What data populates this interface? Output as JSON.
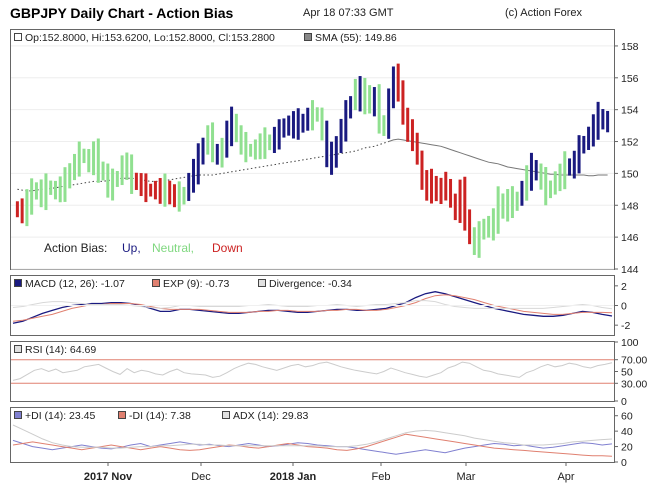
{
  "header": {
    "title": "GBPJPY Daily Chart - Action Bias",
    "date": "Apr 18 07:33 GMT",
    "copyright": "(c) Action Forex"
  },
  "colors": {
    "up": "#1a1a80",
    "neutral": "#90e090",
    "down": "#cc2222",
    "sma": "#777777",
    "macd": "#1a1a80",
    "exp": "#e08070",
    "divergence": "#d8d8d8",
    "rsi": "#cccccc",
    "rsi_levels": "#e08070",
    "pdi": "#8080d0",
    "mdi": "#e08070",
    "adx": "#cccccc"
  },
  "chart_data": [
    {
      "type": "ohlc",
      "legend": {
        "ohlc": "Op:152.8000, Hi:153.6200, Lo:152.8000, Cl:153.2800",
        "sma": "SMA (55): 149.86"
      },
      "bias_legend": {
        "label": "Action Bias:",
        "up": "Up,",
        "neutral": "Neutral,",
        "down": "Down"
      },
      "x_ticks": [
        "2017 Nov",
        "Dec",
        "2018 Jan",
        "Feb",
        "Mar",
        "Apr"
      ],
      "y_ticks": [
        "158",
        "156",
        "154",
        "152",
        "150",
        "148",
        "146",
        "144"
      ],
      "ylim": [
        144,
        159
      ],
      "closes": [
        147.9,
        147.4,
        148.3,
        148.8,
        149.0,
        148.5,
        149.2,
        149.0,
        148.9,
        149.1,
        149.5,
        150.2,
        150.6,
        151.2,
        151.0,
        150.6,
        151.3,
        150.3,
        150.0,
        149.1,
        149.5,
        149.8,
        150.6,
        150.3,
        149.6,
        149.4,
        149.2,
        149.0,
        148.9,
        149.0,
        148.8,
        149.1,
        148.5,
        148.7,
        148.4,
        148.8,
        149.5,
        150.2,
        151.0,
        151.8,
        152.4,
        151.5,
        150.9,
        151.7,
        152.6,
        153.3,
        152.4,
        151.8,
        151.5,
        151.4,
        151.6,
        151.8,
        152.0,
        151.9,
        152.3,
        152.6,
        153.1,
        152.9,
        153.2,
        153.0,
        153.3,
        153.5,
        153.8,
        153.6,
        152.6,
        151.1,
        150.8,
        151.9,
        152.8,
        153.8,
        154.5,
        155.4,
        154.6,
        155.1,
        154.2,
        154.8,
        153.3,
        152.7,
        154.8,
        156.0,
        155.4,
        153.5,
        152.6,
        152.2,
        150.9,
        149.5,
        149.0,
        149.4,
        148.7,
        149.1,
        149.3,
        148.2,
        147.6,
        148.9,
        147.3,
        146.0,
        145.5,
        146.2,
        146.8,
        146.5,
        147.1,
        148.3,
        147.6,
        148.4,
        148.0,
        148.5,
        149.0,
        149.8,
        150.4,
        150.0,
        149.6,
        148.8,
        149.2,
        149.6,
        149.9,
        150.5,
        150.3,
        150.8,
        151.6,
        152.0,
        152.4,
        153.0,
        153.6,
        153.2,
        153.3
      ],
      "bias": "DDNNNNNNNNNNNNNNNNNNNNNNNDDDDDDNDDNNUUUUNNUNUUNNNNNNNNUUUUUUUUNNNUUUUUUNUNNUNNUUDDDDDDDDDDDDDDDDNNNNNNNNNNUNUUNNNNNNUUUUUUUUUUU",
      "sma": [
        149.0,
        148.95,
        148.9,
        148.9,
        148.95,
        149.0,
        149.0,
        149.05,
        149.1,
        149.15,
        149.2,
        149.25,
        149.3,
        149.35,
        149.4,
        149.45,
        149.5,
        149.5,
        149.5,
        149.55,
        149.6,
        149.65,
        149.7,
        149.7,
        149.7,
        149.65,
        149.6,
        149.55,
        149.5,
        149.5,
        149.5,
        149.55,
        149.6,
        149.65,
        149.7,
        149.75,
        149.8,
        149.85,
        149.9,
        149.9,
        149.9,
        149.9,
        149.95,
        150.0,
        150.05,
        150.1,
        150.15,
        150.2,
        150.25,
        150.3,
        150.35,
        150.4,
        150.45,
        150.5,
        150.55,
        150.6,
        150.65,
        150.7,
        150.75,
        150.8,
        150.85,
        150.9,
        150.95,
        151.0,
        151.05,
        151.1,
        151.15,
        151.2,
        151.25,
        151.3,
        151.35,
        151.4,
        151.5,
        151.6,
        151.65,
        151.7,
        151.8,
        151.9,
        152.0,
        152.1,
        152.15,
        152.1,
        152.05,
        152.0,
        151.95,
        151.9,
        151.85,
        151.8,
        151.75,
        151.7,
        151.6,
        151.5,
        151.4,
        151.3,
        151.2,
        151.1,
        151.0,
        150.9,
        150.8,
        150.7,
        150.65,
        150.6,
        150.5,
        150.4,
        150.35,
        150.3,
        150.25,
        150.2,
        150.15,
        150.1,
        150.05,
        150.0,
        149.95,
        149.95,
        149.9,
        149.9,
        149.9,
        149.9,
        149.9,
        149.9,
        149.85,
        149.85,
        149.9,
        149.9,
        149.9
      ]
    },
    {
      "type": "line",
      "legend": {
        "macd": "MACD (12, 26): -1.07",
        "exp": "EXP (9): -0.73",
        "div": "Divergence: -0.34"
      },
      "y_ticks": [
        "2",
        "0",
        "-2"
      ],
      "ylim": [
        -3,
        3
      ],
      "series": [
        {
          "name": "MACD (12, 26): -1.07",
          "values": [
            -1.8,
            -1.6,
            -1.2,
            -0.8,
            -0.5,
            -0.2,
            0.0,
            0.1,
            0.2,
            0.2,
            0.3,
            0.3,
            0.2,
            0.0,
            -0.3,
            -0.6,
            -0.6,
            -0.4,
            -0.4,
            -0.5,
            -0.6,
            -0.7,
            -0.8,
            -0.8,
            -0.7,
            -0.6,
            -0.5,
            -0.5,
            -0.6,
            -0.7,
            -0.7,
            -0.6,
            -0.5,
            -0.4,
            -0.4,
            -0.5,
            -0.5,
            -0.4,
            -0.3,
            0.0,
            0.3,
            0.8,
            1.2,
            1.4,
            1.2,
            0.9,
            0.6,
            0.3,
            0.0,
            -0.3,
            -0.5,
            -0.7,
            -0.9,
            -1.0,
            -1.1,
            -1.1,
            -1.0,
            -0.8,
            -0.6,
            -0.7,
            -0.9,
            -1.07
          ]
        },
        {
          "name": "EXP (9): -0.73",
          "values": [
            -1.6,
            -1.5,
            -1.3,
            -1.1,
            -0.9,
            -0.6,
            -0.3,
            -0.1,
            0.1,
            0.1,
            0.2,
            0.2,
            0.2,
            0.1,
            -0.1,
            -0.3,
            -0.4,
            -0.4,
            -0.4,
            -0.4,
            -0.5,
            -0.6,
            -0.7,
            -0.7,
            -0.7,
            -0.6,
            -0.6,
            -0.5,
            -0.5,
            -0.6,
            -0.6,
            -0.6,
            -0.5,
            -0.5,
            -0.4,
            -0.4,
            -0.5,
            -0.5,
            -0.4,
            -0.2,
            0.0,
            0.3,
            0.7,
            1.0,
            1.1,
            1.0,
            0.8,
            0.6,
            0.3,
            0.0,
            -0.2,
            -0.4,
            -0.6,
            -0.7,
            -0.8,
            -0.9,
            -0.9,
            -0.8,
            -0.7,
            -0.7,
            -0.7,
            -0.73
          ]
        },
        {
          "name": "Divergence: -0.34",
          "values": [
            -0.2,
            -0.1,
            0.1,
            0.3,
            0.4,
            0.4,
            0.3,
            0.2,
            0.1,
            0.1,
            0.1,
            0.1,
            0.0,
            -0.1,
            -0.2,
            -0.3,
            -0.2,
            0.0,
            0.0,
            -0.1,
            -0.1,
            -0.1,
            -0.1,
            -0.1,
            0.0,
            0.0,
            0.1,
            0.0,
            -0.1,
            -0.1,
            -0.1,
            0.0,
            0.0,
            0.1,
            0.0,
            -0.1,
            0.0,
            0.1,
            0.1,
            0.2,
            0.3,
            0.5,
            0.5,
            0.4,
            0.1,
            -0.1,
            -0.2,
            -0.3,
            -0.3,
            -0.3,
            -0.3,
            -0.3,
            -0.3,
            -0.3,
            -0.3,
            -0.2,
            -0.1,
            0.0,
            0.1,
            0.0,
            -0.2,
            -0.34
          ]
        }
      ]
    },
    {
      "type": "line",
      "legend": {
        "rsi": "RSI (14): 64.69"
      },
      "y_ticks": [
        "100",
        "70.00",
        "50",
        "30.00",
        "0"
      ],
      "ylim": [
        0,
        100
      ],
      "levels": [
        70,
        30
      ],
      "series": [
        {
          "name": "RSI (14): 64.69",
          "values": [
            35,
            38,
            45,
            52,
            55,
            50,
            54,
            48,
            50,
            52,
            58,
            60,
            62,
            56,
            50,
            45,
            55,
            48,
            52,
            50,
            46,
            44,
            50,
            54,
            48,
            46,
            45,
            44,
            40,
            42,
            48,
            55,
            60,
            64,
            62,
            58,
            55,
            52,
            56,
            60,
            62,
            58,
            60,
            64,
            66,
            62,
            58,
            55,
            52,
            50,
            48,
            46,
            50,
            56,
            52,
            48,
            45,
            42,
            40,
            44,
            48,
            56,
            60,
            66,
            64,
            58,
            52,
            50,
            46,
            44,
            42,
            40,
            48,
            52,
            58,
            62,
            58,
            60,
            64,
            62,
            58,
            56,
            60,
            62,
            64.69
          ]
        }
      ]
    },
    {
      "type": "line",
      "legend": {
        "pdi": "+DI (14): 23.45",
        "mdi": "-DI (14): 7.38",
        "adx": "ADX (14): 29.83"
      },
      "y_ticks": [
        "60",
        "40",
        "20",
        "0"
      ],
      "ylim": [
        0,
        70
      ],
      "series": [
        {
          "name": "+DI (14): 23.45",
          "values": [
            28,
            24,
            20,
            18,
            16,
            18,
            20,
            22,
            20,
            18,
            17,
            19,
            22,
            24,
            20,
            22,
            24,
            26,
            24,
            22,
            23,
            21,
            20,
            22,
            24,
            22,
            20,
            21,
            23,
            25,
            24,
            22,
            21,
            20,
            20,
            18,
            16,
            14,
            12,
            10,
            12,
            14,
            16,
            14,
            12,
            15,
            18,
            20,
            22,
            24,
            23,
            21,
            22,
            20,
            18,
            19,
            21,
            23,
            25,
            24,
            22,
            23.45
          ]
        },
        {
          "name": "-DI (14): 7.38",
          "values": [
            22,
            24,
            26,
            24,
            22,
            20,
            18,
            16,
            18,
            20,
            22,
            20,
            18,
            16,
            18,
            20,
            18,
            16,
            15,
            16,
            18,
            20,
            22,
            21,
            19,
            18,
            20,
            22,
            24,
            22,
            20,
            19,
            18,
            16,
            15,
            17,
            20,
            24,
            28,
            32,
            36,
            34,
            32,
            30,
            28,
            26,
            24,
            22,
            20,
            18,
            17,
            16,
            15,
            14,
            13,
            12,
            11,
            10,
            9,
            8,
            8,
            7.38
          ]
        },
        {
          "name": "ADX (14): 29.83",
          "values": [
            48,
            42,
            36,
            30,
            25,
            22,
            20,
            19,
            19,
            19,
            18,
            18,
            19,
            20,
            20,
            21,
            21,
            22,
            23,
            23,
            22,
            22,
            21,
            21,
            21,
            21,
            21,
            21,
            21,
            21,
            21,
            21,
            20,
            20,
            20,
            21,
            23,
            26,
            30,
            34,
            38,
            40,
            41,
            40,
            38,
            36,
            34,
            31,
            29,
            27,
            25,
            24,
            22,
            22,
            22,
            23,
            24,
            26,
            27,
            28,
            29,
            29.83
          ]
        }
      ]
    }
  ]
}
